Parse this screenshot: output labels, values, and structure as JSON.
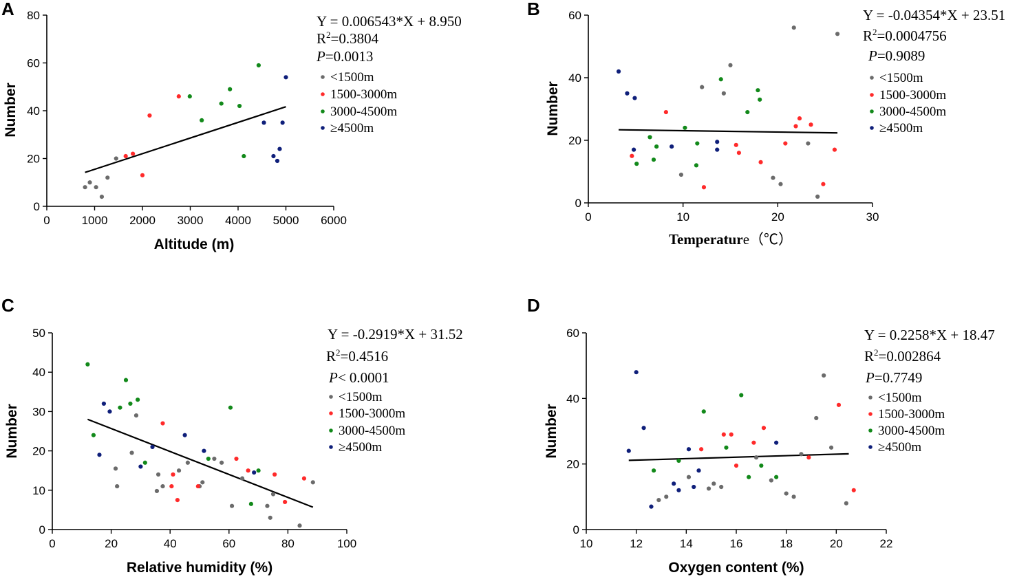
{
  "group_colors": {
    "lt1500": "#6b6b6b",
    "g1500_3000": "#ff2a2a",
    "g3000_4500": "#12891a",
    "ge4500": "#0f1f7a"
  },
  "chart_data": [
    {
      "panel": "A",
      "type": "scatter",
      "xlabel": "Altitude (m)",
      "ylabel": "Number",
      "xlim": [
        0,
        6000
      ],
      "ylim": [
        0,
        80
      ],
      "xticks": [
        0,
        1000,
        2000,
        3000,
        4000,
        5000,
        6000
      ],
      "yticks": [
        0,
        20,
        40,
        60,
        80
      ],
      "equation": "Y = 0.006543*X + 8.950",
      "r2_prefix": "R",
      "r2_sup": "2",
      "r2_value": "=0.3804",
      "p_symbol": "P",
      "p_value": "=0.0013",
      "regression": {
        "slope": 0.006543,
        "intercept": 8.95,
        "x_range": [
          800,
          5000
        ]
      },
      "legend": [
        "<1500m",
        "1500-3000m",
        "3000-4500m",
        "≥4500m"
      ],
      "series": [
        {
          "group": "lt1500",
          "name": "<1500m",
          "x": [
            800,
            900,
            1030,
            1150,
            1270,
            1450
          ],
          "y": [
            8,
            10,
            8,
            4,
            12,
            20
          ]
        },
        {
          "group": "g1500_3000",
          "name": "1500-3000m",
          "x": [
            1650,
            1800,
            2000,
            2150,
            2760
          ],
          "y": [
            21,
            22,
            13,
            38,
            46
          ]
        },
        {
          "group": "g3000_4500",
          "name": "3000-4500m",
          "x": [
            2990,
            3240,
            3650,
            3830,
            4030,
            4120,
            4430
          ],
          "y": [
            46,
            36,
            43,
            49,
            42,
            21,
            59
          ]
        },
        {
          "group": "ge4500",
          "name": "≥4500m",
          "x": [
            4540,
            4740,
            4820,
            4870,
            4930,
            5000
          ],
          "y": [
            35,
            21,
            19,
            24,
            35,
            54
          ]
        }
      ]
    },
    {
      "panel": "B",
      "type": "scatter",
      "xlabel_main": "Temperatur",
      "xlabel_tail": "e（℃）",
      "ylabel": "Number",
      "xlim": [
        0,
        30
      ],
      "ylim": [
        0,
        60
      ],
      "xticks": [
        0,
        10,
        20,
        30
      ],
      "yticks": [
        0,
        20,
        40,
        60
      ],
      "equation": "Y = -0.04354*X + 23.51",
      "r2_prefix": "R",
      "r2_sup": "2",
      "r2_value": "=0.0004756",
      "p_symbol": "P",
      "p_value": "=0.9089",
      "regression": {
        "slope": -0.04354,
        "intercept": 23.51,
        "x_range": [
          3.2,
          26.3
        ]
      },
      "legend": [
        "<1500m",
        "1500-3000m",
        "3000-4500m",
        "≥4500m"
      ],
      "series": [
        {
          "group": "lt1500",
          "name": "<1500m",
          "x": [
            9.8,
            12,
            14.3,
            15,
            19.5,
            20.3,
            21.7,
            23.2,
            24.2,
            26.3
          ],
          "y": [
            9,
            37,
            35,
            44,
            8,
            6,
            56,
            19,
            2,
            54
          ]
        },
        {
          "group": "g1500_3000",
          "name": "1500-3000m",
          "x": [
            4.6,
            8.2,
            12.2,
            15.6,
            15.9,
            18.2,
            20.8,
            21.9,
            22.3,
            23.5,
            24.8,
            26
          ],
          "y": [
            15,
            29,
            5,
            18.5,
            16,
            13,
            19,
            24.5,
            27,
            25,
            6,
            17
          ]
        },
        {
          "group": "g3000_4500",
          "name": "3000-4500m",
          "x": [
            5.1,
            6.5,
            6.9,
            7.2,
            10.2,
            11.4,
            11.5,
            14,
            16.8,
            17.9,
            18.1
          ],
          "y": [
            12.5,
            21,
            13.8,
            18,
            24,
            12,
            19,
            39.5,
            29,
            36,
            33
          ]
        },
        {
          "group": "ge4500",
          "name": "≥4500m",
          "x": [
            3.2,
            4.1,
            4.9,
            4.8,
            8.8,
            13.6,
            13.6
          ],
          "y": [
            42,
            35,
            33.5,
            17,
            18,
            19.5,
            17
          ]
        }
      ]
    },
    {
      "panel": "C",
      "type": "scatter",
      "xlabel": "Relative humidity (%)",
      "ylabel": "Number",
      "xlim": [
        0,
        100
      ],
      "ylim": [
        0,
        50
      ],
      "xticks": [
        0,
        20,
        40,
        60,
        80,
        100
      ],
      "yticks": [
        0,
        10,
        20,
        30,
        40,
        50
      ],
      "equation": "Y = -0.2919*X + 31.52",
      "r2_prefix": "R",
      "r2_sup": "2",
      "r2_value": "=0.4516",
      "p_symbol": "P",
      "p_value": "< 0.0001",
      "regression": {
        "slope": -0.2919,
        "intercept": 31.52,
        "x_range": [
          12,
          88.5
        ]
      },
      "legend": [
        "<1500m",
        "1500-3000m",
        "3000-4500m",
        "≥4500m"
      ],
      "series": [
        {
          "group": "lt1500",
          "name": "<1500m",
          "x": [
            21.5,
            22,
            27,
            28.5,
            35.5,
            36,
            37.5,
            43,
            46,
            50,
            51,
            55,
            57.5,
            61,
            64.5,
            73,
            74,
            75,
            84,
            88.5
          ],
          "y": [
            15.5,
            11,
            19.5,
            29,
            9.8,
            14,
            11,
            15,
            17,
            11,
            12,
            18,
            17,
            6,
            13,
            6,
            3,
            9,
            1,
            12
          ]
        },
        {
          "group": "g1500_3000",
          "name": "1500-3000m",
          "x": [
            37.5,
            40.5,
            41,
            42.5,
            49.5,
            62.5,
            66.5,
            75.5,
            79,
            85.5
          ],
          "y": [
            27,
            11,
            14,
            7.5,
            11,
            18,
            15,
            14,
            7,
            13
          ]
        },
        {
          "group": "g3000_4500",
          "name": "3000-4500m",
          "x": [
            12,
            14,
            23,
            25,
            26.5,
            29,
            31.5,
            53,
            60.5,
            67.5,
            70
          ],
          "y": [
            42,
            24,
            31,
            38,
            32,
            33,
            17,
            18,
            31,
            6.5,
            15
          ]
        },
        {
          "group": "ge4500",
          "name": "≥4500m",
          "x": [
            16,
            17.5,
            19.5,
            30,
            34,
            45,
            51.5,
            68.5
          ],
          "y": [
            19,
            32,
            30,
            16,
            21,
            24,
            20,
            14.5
          ]
        }
      ]
    },
    {
      "panel": "D",
      "type": "scatter",
      "xlabel": "Oxygen content (%)",
      "ylabel": "Number",
      "xlim": [
        10,
        22
      ],
      "ylim": [
        0,
        60
      ],
      "xticks": [
        10,
        12,
        14,
        16,
        18,
        20,
        22
      ],
      "yticks": [
        0,
        20,
        40,
        60
      ],
      "equation": "Y = 0.2258*X + 18.47",
      "r2_prefix": "R",
      "r2_sup": "2",
      "r2_value": "=0.002864",
      "p_symbol": "P",
      "p_value": "=0.7749",
      "regression": {
        "slope": 0.2258,
        "intercept": 18.47,
        "x_range": [
          11.7,
          20.5
        ]
      },
      "legend": [
        "<1500m",
        "1500-3000m",
        "3000-4500m",
        "≥4500m"
      ],
      "series": [
        {
          "group": "lt1500",
          "name": "<1500m",
          "x": [
            12.9,
            13.2,
            14.1,
            14.9,
            15.1,
            15.4,
            16.8,
            17.4,
            18,
            18.3,
            18.6,
            19.2,
            19.5,
            19.8,
            20.4
          ],
          "y": [
            9,
            10,
            16,
            12.5,
            14,
            13,
            22,
            15,
            11,
            10,
            23,
            34,
            47,
            25,
            8
          ]
        },
        {
          "group": "g1500_3000",
          "name": "1500-3000m",
          "x": [
            14.6,
            15.5,
            15.8,
            16,
            16.7,
            17.1,
            18.9,
            20.1,
            20.7
          ],
          "y": [
            24.5,
            29,
            29,
            19.5,
            26.5,
            31,
            22,
            38,
            12
          ]
        },
        {
          "group": "g3000_4500",
          "name": "3000-4500m",
          "x": [
            12.7,
            13.7,
            14.7,
            15.6,
            16.2,
            16.5,
            17,
            17.6
          ],
          "y": [
            18,
            21,
            36,
            25,
            41,
            16,
            19.5,
            16
          ]
        },
        {
          "group": "ge4500",
          "name": "≥4500m",
          "x": [
            11.7,
            12,
            12.3,
            12.6,
            13.5,
            13.7,
            14.1,
            14.3,
            14.5,
            17.6
          ],
          "y": [
            24,
            48,
            31,
            7,
            14,
            12,
            24.5,
            13,
            18,
            26.5
          ]
        }
      ]
    }
  ]
}
